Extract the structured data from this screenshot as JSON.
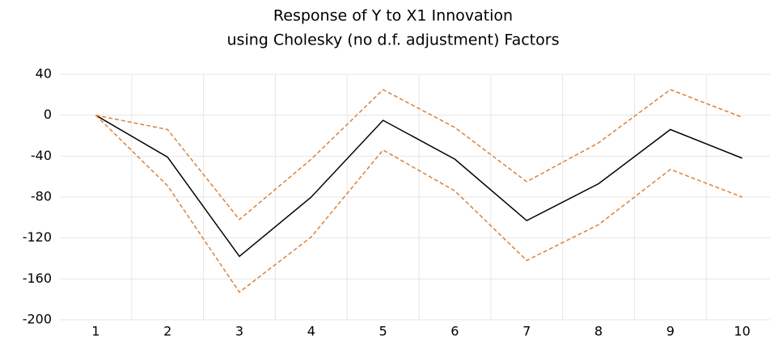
{
  "chart_data": {
    "type": "line",
    "title": "Response of Y to X1 Innovation",
    "subtitle": "using Cholesky (no d.f. adjustment) Factors",
    "categories": [
      "1",
      "2",
      "3",
      "4",
      "5",
      "6",
      "7",
      "8",
      "9",
      "10"
    ],
    "series": [
      {
        "color": "#000000",
        "dashed": false,
        "values": [
          0,
          -41,
          -138,
          -80,
          -5,
          -43,
          -103,
          -67,
          -14,
          -42
        ]
      },
      {
        "color": "#d9823b",
        "dashed": true,
        "values": [
          0,
          -14,
          -102,
          -43,
          25,
          -12,
          -65,
          -27,
          25,
          -2
        ]
      },
      {
        "color": "#d9823b",
        "dashed": true,
        "values": [
          0,
          -69,
          -173,
          -119,
          -34,
          -74,
          -142,
          -107,
          -53,
          -80
        ]
      }
    ],
    "ylim": [
      -200,
      40
    ],
    "yticks": [
      40,
      0,
      -40,
      -80,
      -120,
      -160,
      -200
    ],
    "grid": true
  }
}
